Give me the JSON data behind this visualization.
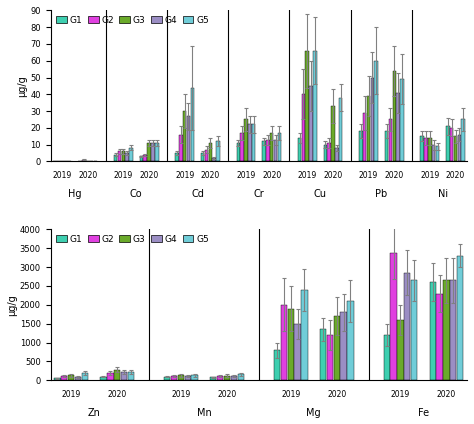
{
  "groups": [
    "G1",
    "G2",
    "G3",
    "G4",
    "G5"
  ],
  "colors": [
    "#3ecfb0",
    "#e040e0",
    "#6aaa2a",
    "#9b8ec4",
    "#70cdd8"
  ],
  "top": {
    "elements": [
      "Hg",
      "Co",
      "Cd",
      "Cr",
      "Cu",
      "Pb",
      "Ni"
    ],
    "ylim": [
      0,
      90
    ],
    "yticks": [
      0,
      10,
      20,
      30,
      40,
      50,
      60,
      70,
      80,
      90
    ],
    "ylabel": "μg/g",
    "data": {
      "Hg": {
        "2019": {
          "vals": [
            0.05,
            0.05,
            0.05,
            0.05,
            0.05
          ],
          "errs": [
            0.02,
            0.02,
            0.02,
            0.02,
            0.02
          ]
        },
        "2020": {
          "vals": [
            0.05,
            1.0,
            0.05,
            0.05,
            0.05
          ],
          "errs": [
            0.02,
            0.4,
            0.02,
            0.02,
            0.02
          ]
        }
      },
      "Co": {
        "2019": {
          "vals": [
            4,
            6,
            6,
            5,
            8
          ],
          "errs": [
            1,
            1.5,
            1.5,
            1,
            1.5
          ]
        },
        "2020": {
          "vals": [
            3,
            4,
            11,
            11,
            11
          ],
          "errs": [
            0.5,
            0.5,
            2,
            2,
            2
          ]
        }
      },
      "Cd": {
        "2019": {
          "vals": [
            5,
            16,
            30,
            27,
            44
          ],
          "errs": [
            1,
            5,
            10,
            8,
            25
          ]
        },
        "2020": {
          "vals": [
            5,
            7,
            11,
            2,
            12
          ],
          "errs": [
            1,
            2,
            3,
            0.5,
            3
          ]
        }
      },
      "Cr": {
        "2019": {
          "vals": [
            11,
            17,
            25,
            22,
            22
          ],
          "errs": [
            2,
            4,
            7,
            5,
            5
          ]
        },
        "2020": {
          "vals": [
            12,
            13,
            17,
            13,
            17
          ],
          "errs": [
            2,
            3,
            4,
            3,
            4
          ]
        }
      },
      "Cu": {
        "2019": {
          "vals": [
            14,
            40,
            66,
            45,
            66
          ],
          "errs": [
            3,
            15,
            22,
            15,
            20
          ]
        },
        "2020": {
          "vals": [
            10,
            11,
            33,
            8,
            38
          ],
          "errs": [
            2,
            3,
            10,
            2,
            8
          ]
        }
      },
      "Pb": {
        "2019": {
          "vals": [
            18,
            29,
            39,
            50,
            60
          ],
          "errs": [
            4,
            10,
            12,
            15,
            20
          ]
        },
        "2020": {
          "vals": [
            18,
            25,
            54,
            41,
            49
          ],
          "errs": [
            4,
            7,
            15,
            12,
            15
          ]
        }
      },
      "Ni": {
        "2019": {
          "vals": [
            15,
            14,
            14,
            10,
            9
          ],
          "errs": [
            3,
            4,
            4,
            3,
            2
          ]
        },
        "2020": {
          "vals": [
            21,
            20,
            15,
            16,
            25
          ],
          "errs": [
            5,
            5,
            4,
            4,
            7
          ]
        }
      }
    }
  },
  "bottom": {
    "elements": [
      "Zn",
      "Mn",
      "Mg",
      "Fe"
    ],
    "ylim": [
      0,
      4000
    ],
    "yticks": [
      0,
      500,
      1000,
      1500,
      2000,
      2500,
      3000,
      3500,
      4000
    ],
    "ylabel": "μg/g",
    "data": {
      "Zn": {
        "2019": {
          "vals": [
            60,
            110,
            130,
            100,
            200
          ],
          "errs": [
            15,
            30,
            40,
            25,
            50
          ]
        },
        "2020": {
          "vals": [
            100,
            200,
            280,
            220,
            230
          ],
          "errs": [
            20,
            50,
            70,
            55,
            55
          ]
        }
      },
      "Mn": {
        "2019": {
          "vals": [
            100,
            120,
            130,
            120,
            130
          ],
          "errs": [
            20,
            30,
            35,
            30,
            30
          ]
        },
        "2020": {
          "vals": [
            80,
            115,
            125,
            120,
            155
          ],
          "errs": [
            15,
            25,
            30,
            25,
            35
          ]
        }
      },
      "Mg": {
        "2019": {
          "vals": [
            800,
            2000,
            1900,
            1500,
            2400
          ],
          "errs": [
            200,
            700,
            600,
            400,
            550
          ]
        },
        "2020": {
          "vals": [
            1350,
            1200,
            1700,
            1800,
            2100
          ],
          "errs": [
            300,
            400,
            500,
            500,
            550
          ]
        }
      },
      "Fe": {
        "2019": {
          "vals": [
            1200,
            3380,
            1600,
            2850,
            2650
          ],
          "errs": [
            300,
            700,
            400,
            600,
            550
          ]
        },
        "2020": {
          "vals": [
            2600,
            2300,
            2650,
            2650,
            3300
          ],
          "errs": [
            500,
            500,
            600,
            600,
            300
          ]
        }
      }
    }
  }
}
